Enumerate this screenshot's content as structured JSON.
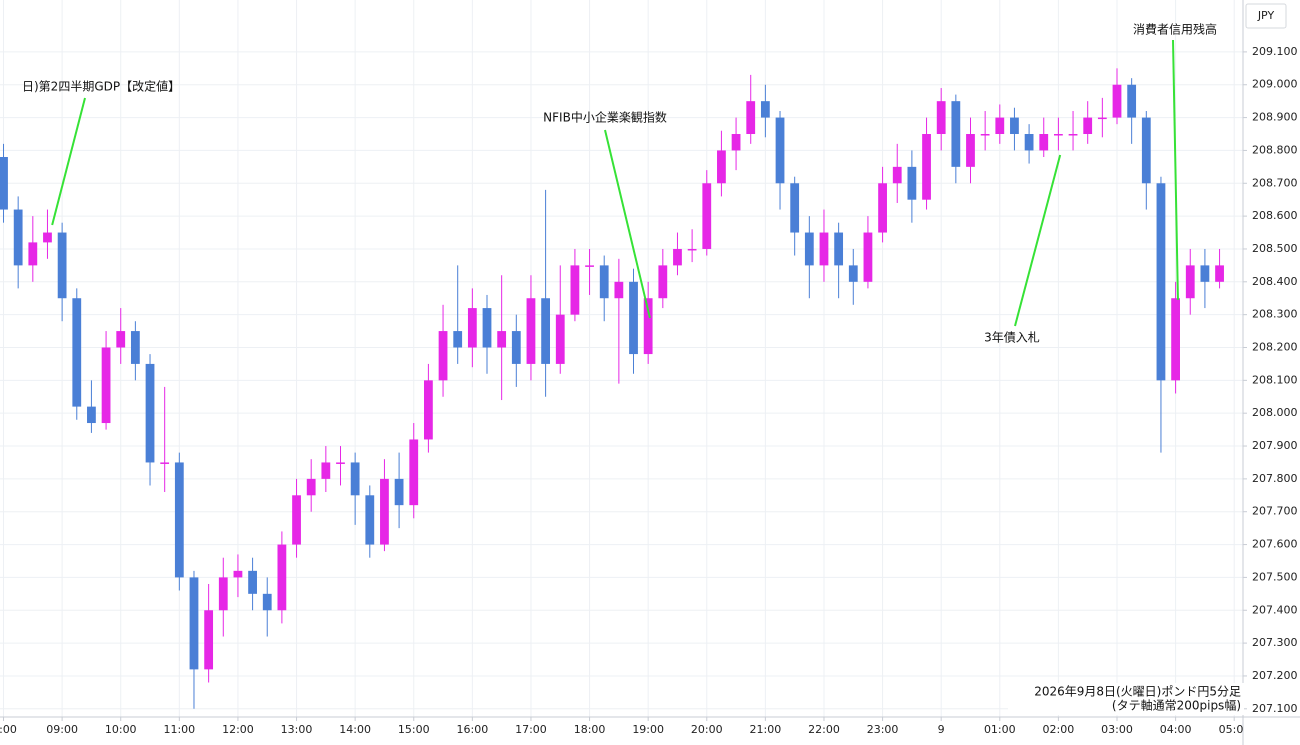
{
  "chart_data": {
    "type": "candlestick",
    "y_axis_label": "JPY",
    "note_lines": [
      "2026年9月8日(火曜日)ポンド円5分足",
      "(タテ軸通常200pips幅)"
    ],
    "up_color": "#e627e6",
    "down_color": "#4a7fd6",
    "annotation_color": "#36e236",
    "grid": true,
    "xlim": [
      -0.06,
      21.15
    ],
    "ylim": [
      207.075,
      209.258
    ],
    "xticks": [
      {
        "value": 0,
        "label": ":00"
      },
      {
        "value": 1,
        "label": "09:00"
      },
      {
        "value": 2,
        "label": "10:00"
      },
      {
        "value": 3,
        "label": "11:00"
      },
      {
        "value": 4,
        "label": "12:00"
      },
      {
        "value": 5,
        "label": "13:00"
      },
      {
        "value": 6,
        "label": "14:00"
      },
      {
        "value": 7,
        "label": "15:00"
      },
      {
        "value": 8,
        "label": "16:00"
      },
      {
        "value": 9,
        "label": "17:00"
      },
      {
        "value": 10,
        "label": "18:00"
      },
      {
        "value": 11,
        "label": "19:00"
      },
      {
        "value": 12,
        "label": "20:00"
      },
      {
        "value": 13,
        "label": "21:00"
      },
      {
        "value": 14,
        "label": "22:00"
      },
      {
        "value": 15,
        "label": "23:00"
      },
      {
        "value": 16,
        "label": "9"
      },
      {
        "value": 17,
        "label": "01:00"
      },
      {
        "value": 18,
        "label": "02:00"
      },
      {
        "value": 19,
        "label": "03:00"
      },
      {
        "value": 20,
        "label": "04:00"
      },
      {
        "value": 21,
        "label": "05:0"
      }
    ],
    "yticks": [
      {
        "value": 207.1,
        "label": "207.100"
      },
      {
        "value": 207.2,
        "label": "207.200"
      },
      {
        "value": 207.3,
        "label": "207.300"
      },
      {
        "value": 207.4,
        "label": "207.400"
      },
      {
        "value": 207.5,
        "label": "207.500"
      },
      {
        "value": 207.6,
        "label": "207.600"
      },
      {
        "value": 207.7,
        "label": "207.700"
      },
      {
        "value": 207.8,
        "label": "207.800"
      },
      {
        "value": 207.9,
        "label": "207.900"
      },
      {
        "value": 208.0,
        "label": "208.000"
      },
      {
        "value": 208.1,
        "label": "208.100"
      },
      {
        "value": 208.2,
        "label": "208.200"
      },
      {
        "value": 208.3,
        "label": "208.300"
      },
      {
        "value": 208.4,
        "label": "208.400"
      },
      {
        "value": 208.5,
        "label": "208.500"
      },
      {
        "value": 208.6,
        "label": "208.600"
      },
      {
        "value": 208.7,
        "label": "208.700"
      },
      {
        "value": 208.8,
        "label": "208.800"
      },
      {
        "value": 208.9,
        "label": "208.900"
      },
      {
        "value": 209.0,
        "label": "209.000"
      },
      {
        "value": 209.1,
        "label": "209.100"
      }
    ],
    "annotations": [
      {
        "text": "日)第2四半期GDP【改定値】",
        "x": 0.83,
        "y": 208.573
      },
      {
        "text": "NFIB中小企業楽観指数",
        "x": 11.03,
        "y": 208.29
      },
      {
        "text": "3年債入札",
        "x": 18.03,
        "y": 208.786
      },
      {
        "text": "消費者信用残高",
        "x": 20.04,
        "y": 208.345
      }
    ],
    "x": [
      0,
      0.25,
      0.5,
      0.75,
      1,
      1.25,
      1.5,
      1.75,
      2,
      2.25,
      2.5,
      2.75,
      3,
      3.25,
      3.5,
      3.75,
      4,
      4.25,
      4.5,
      4.75,
      5,
      5.25,
      5.5,
      5.75,
      6,
      6.25,
      6.5,
      6.75,
      7,
      7.25,
      7.5,
      7.75,
      8,
      8.25,
      8.5,
      8.75,
      9,
      9.25,
      9.5,
      9.75,
      10,
      10.25,
      10.5,
      10.75,
      11,
      11.25,
      11.5,
      11.75,
      12,
      12.25,
      12.5,
      12.75,
      13,
      13.25,
      13.5,
      13.75,
      14,
      14.25,
      14.5,
      14.75,
      15,
      15.25,
      15.5,
      15.75,
      16,
      16.25,
      16.5,
      16.75,
      17,
      17.25,
      17.5,
      17.75,
      18,
      18.25,
      18.5,
      18.75,
      19,
      19.25,
      19.5,
      19.75,
      20,
      20.25,
      20.5,
      20.75
    ],
    "open": [
      208.78,
      208.62,
      208.45,
      208.52,
      208.55,
      208.35,
      208.02,
      207.97,
      208.2,
      208.25,
      208.15,
      207.85,
      207.85,
      207.5,
      207.22,
      207.4,
      207.5,
      207.52,
      207.45,
      207.4,
      207.6,
      207.75,
      207.8,
      207.85,
      207.85,
      207.75,
      207.6,
      207.8,
      207.72,
      207.92,
      208.1,
      208.25,
      208.2,
      208.32,
      208.2,
      208.25,
      208.15,
      208.35,
      208.15,
      208.3,
      208.45,
      208.45,
      208.35,
      208.4,
      208.18,
      208.35,
      208.45,
      208.5,
      208.5,
      208.7,
      208.8,
      208.85,
      208.95,
      208.9,
      208.7,
      208.55,
      208.45,
      208.55,
      208.45,
      208.4,
      208.55,
      208.7,
      208.75,
      208.65,
      208.85,
      208.95,
      208.75,
      208.85,
      208.85,
      208.9,
      208.85,
      208.8,
      208.85,
      208.85,
      208.85,
      208.9,
      208.9,
      209.0,
      208.9,
      208.7,
      208.1,
      208.35,
      208.45,
      208.4
    ],
    "high": [
      208.82,
      208.66,
      208.6,
      208.62,
      208.58,
      208.38,
      208.1,
      208.25,
      208.32,
      208.28,
      208.18,
      208.08,
      207.88,
      207.52,
      207.48,
      207.56,
      207.57,
      207.56,
      207.5,
      207.64,
      207.8,
      207.86,
      207.9,
      207.9,
      207.88,
      207.78,
      207.86,
      207.88,
      207.97,
      208.15,
      208.33,
      208.45,
      208.38,
      208.36,
      208.42,
      208.3,
      208.42,
      208.68,
      208.45,
      208.5,
      208.5,
      208.48,
      208.47,
      208.44,
      208.4,
      208.5,
      208.55,
      208.56,
      208.74,
      208.86,
      208.9,
      209.03,
      209.0,
      208.92,
      208.72,
      208.6,
      208.62,
      208.58,
      208.5,
      208.6,
      208.75,
      208.82,
      208.8,
      208.9,
      208.99,
      208.97,
      208.9,
      208.92,
      208.94,
      208.93,
      208.88,
      208.9,
      208.9,
      208.92,
      208.95,
      208.96,
      209.05,
      209.02,
      208.92,
      208.72,
      208.4,
      208.5,
      208.5,
      208.5
    ],
    "low": [
      208.58,
      208.38,
      208.4,
      208.47,
      208.28,
      207.98,
      207.94,
      207.95,
      208.15,
      208.1,
      207.78,
      207.76,
      207.46,
      207.1,
      207.18,
      207.32,
      207.44,
      207.4,
      207.32,
      207.36,
      207.56,
      207.7,
      207.76,
      207.78,
      207.66,
      207.56,
      207.58,
      207.65,
      207.68,
      207.88,
      208.05,
      208.15,
      208.14,
      208.12,
      208.04,
      208.08,
      208.1,
      208.05,
      208.12,
      208.28,
      208.36,
      208.28,
      208.09,
      208.12,
      208.15,
      208.32,
      208.42,
      208.46,
      208.48,
      208.66,
      208.74,
      208.82,
      208.84,
      208.62,
      208.48,
      208.35,
      208.4,
      208.35,
      208.33,
      208.38,
      208.52,
      208.64,
      208.58,
      208.62,
      208.8,
      208.7,
      208.7,
      208.8,
      208.82,
      208.8,
      208.76,
      208.78,
      208.8,
      208.8,
      208.82,
      208.84,
      208.88,
      208.82,
      208.62,
      207.88,
      208.06,
      208.3,
      208.32,
      208.38
    ],
    "close": [
      208.62,
      208.45,
      208.52,
      208.55,
      208.35,
      208.02,
      207.97,
      208.2,
      208.25,
      208.15,
      207.85,
      207.85,
      207.5,
      207.22,
      207.4,
      207.5,
      207.52,
      207.45,
      207.4,
      207.6,
      207.75,
      207.8,
      207.85,
      207.85,
      207.75,
      207.6,
      207.8,
      207.72,
      207.92,
      208.1,
      208.25,
      208.2,
      208.32,
      208.2,
      208.25,
      208.15,
      208.35,
      208.15,
      208.3,
      208.45,
      208.45,
      208.35,
      208.4,
      208.18,
      208.35,
      208.45,
      208.5,
      208.5,
      208.7,
      208.8,
      208.85,
      208.95,
      208.9,
      208.7,
      208.55,
      208.45,
      208.55,
      208.45,
      208.4,
      208.55,
      208.7,
      208.75,
      208.65,
      208.85,
      208.95,
      208.75,
      208.85,
      208.85,
      208.9,
      208.85,
      208.8,
      208.85,
      208.85,
      208.85,
      208.9,
      208.9,
      209.0,
      208.9,
      208.7,
      208.1,
      208.35,
      208.45,
      208.4,
      208.45
    ]
  }
}
